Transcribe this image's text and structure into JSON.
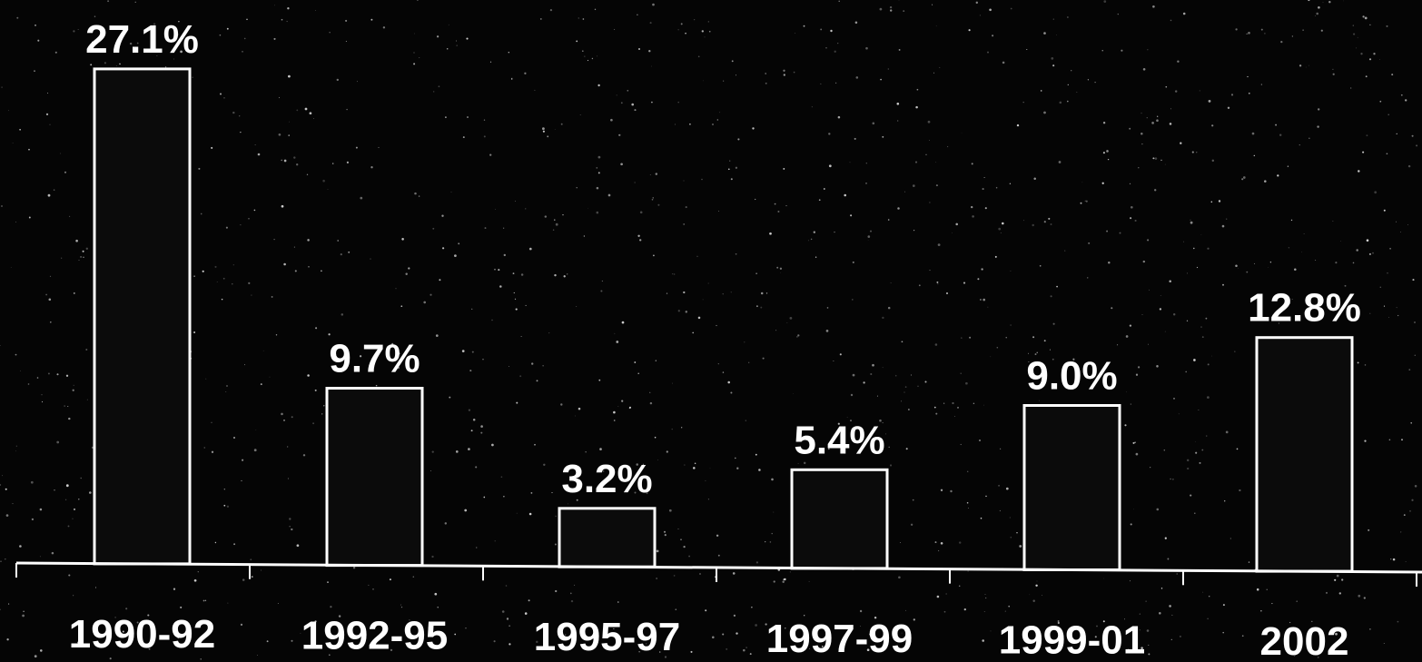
{
  "chart_data": {
    "type": "bar",
    "title": "",
    "xlabel": "",
    "ylabel": "",
    "categories": [
      "1990-92",
      "1992-95",
      "1995-97",
      "1997-99",
      "1999-01",
      "2002"
    ],
    "values": [
      27.1,
      9.7,
      3.2,
      5.4,
      9.0,
      12.8
    ],
    "value_labels": [
      "27.1%",
      "9.7%",
      "3.2%",
      "5.4%",
      "9.0%",
      "12.8%"
    ],
    "unit": "%",
    "ylim": [
      0,
      28
    ],
    "grid": false,
    "legend": "none"
  },
  "colors": {
    "background": "#050505",
    "bar_fill": "#0b0b0b",
    "bar_outline": "#ffffff",
    "text": "#ffffff"
  }
}
